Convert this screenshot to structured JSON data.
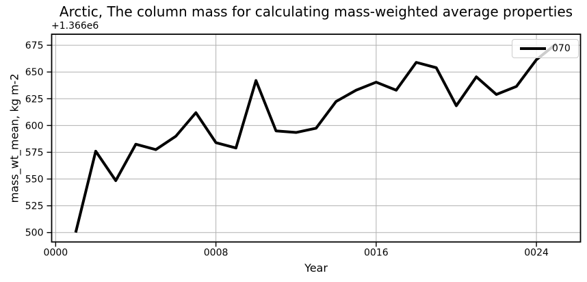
{
  "chart_data": {
    "type": "line",
    "title": "Arctic, The column mass for calculating mass-weighted average properties",
    "xlabel": "Year",
    "ylabel": "mass_wt_mean, kg m-2",
    "y_offset_label": "+1.366e6",
    "y_offset_value": 1366000,
    "x": [
      1,
      2,
      3,
      4,
      5,
      6,
      7,
      8,
      9,
      10,
      11,
      12,
      13,
      14,
      15,
      16,
      17,
      18,
      19,
      20,
      21,
      22,
      23,
      24,
      25
    ],
    "series": [
      {
        "name": "070",
        "color": "#000000",
        "linewidth": 4,
        "values": [
          500,
          576,
          548.5,
          582.5,
          577.5,
          590,
          612,
          584,
          579,
          642,
          595,
          593.5,
          597.5,
          622.5,
          633,
          640.5,
          633,
          659,
          654,
          618.5,
          645.5,
          629,
          636.5,
          661.5,
          676.5
        ]
      }
    ],
    "xlim": [
      -0.2,
      26.2
    ],
    "ylim": [
      491.2,
      685.3
    ],
    "xticks": {
      "values": [
        0,
        8,
        16,
        24
      ],
      "labels": [
        "0000",
        "0008",
        "0016",
        "0024"
      ]
    },
    "yticks": {
      "values": [
        500,
        525,
        550,
        575,
        600,
        625,
        650,
        675
      ],
      "labels": [
        "500",
        "525",
        "550",
        "575",
        "600",
        "625",
        "650",
        "675"
      ]
    },
    "grid": true,
    "grid_color": "#b0b0b0",
    "spine_color": "#000000",
    "background": "#ffffff",
    "tick_label_fontsize": "14px",
    "legend": {
      "position": "upper right",
      "entries": [
        {
          "label": "070",
          "color": "#000000"
        }
      ]
    }
  }
}
